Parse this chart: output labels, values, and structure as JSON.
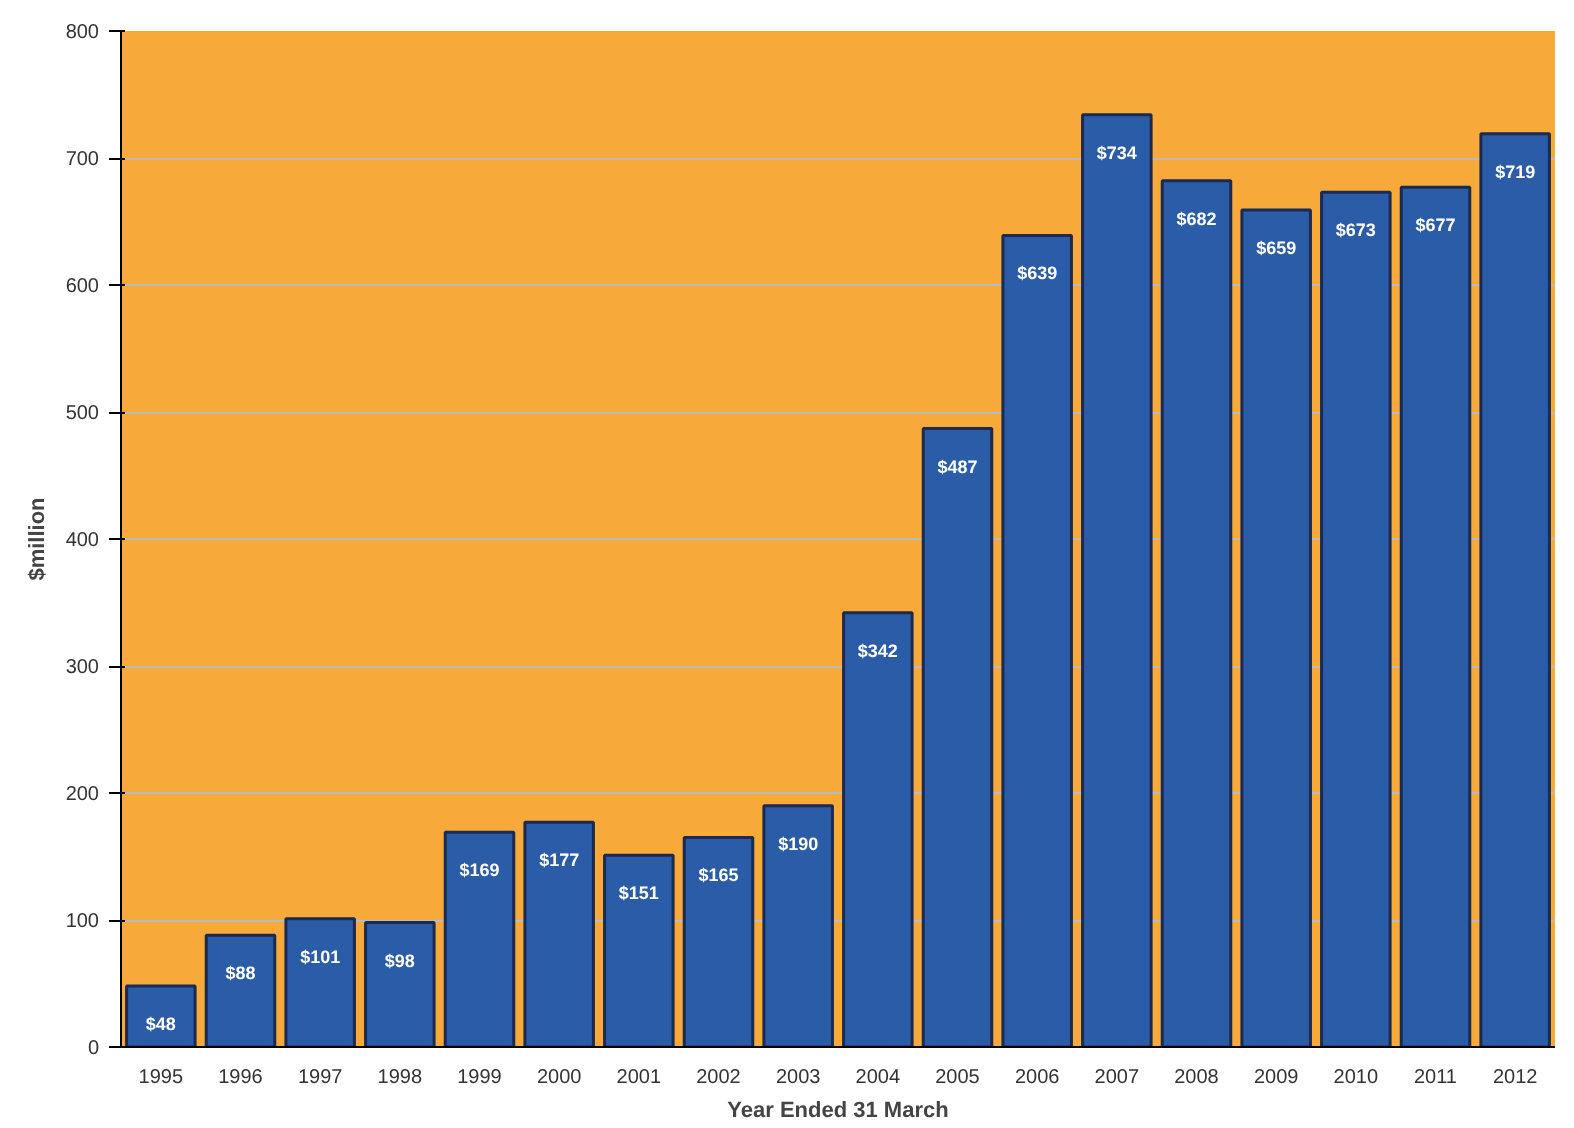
{
  "chart_data": {
    "type": "bar",
    "xlabel": "Year Ended 31 March",
    "ylabel": "$million",
    "categories": [
      "1995",
      "1996",
      "1997",
      "1998",
      "1999",
      "2000",
      "2001",
      "2002",
      "2003",
      "2004",
      "2005",
      "2006",
      "2007",
      "2008",
      "2009",
      "2010",
      "2011",
      "2012"
    ],
    "values": [
      48,
      88,
      101,
      98,
      169,
      177,
      151,
      165,
      190,
      342,
      487,
      639,
      734,
      682,
      659,
      673,
      677,
      719
    ],
    "value_labels": [
      "$48",
      "$88",
      "$101",
      "$98",
      "$169",
      "$177",
      "$151",
      "$165",
      "$190",
      "$342",
      "$487",
      "$639",
      "$734",
      "$682",
      "$659",
      "$673",
      "$677",
      "$719"
    ],
    "color": "#2b5ca8",
    "ylim": [
      0,
      800
    ],
    "yticks": [
      0,
      100,
      200,
      300,
      400,
      500,
      600,
      700,
      800
    ],
    "grid": "y"
  }
}
